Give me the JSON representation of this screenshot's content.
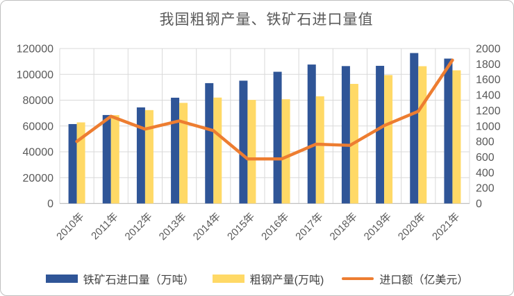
{
  "chart_data": {
    "type": "bar",
    "subtype": "combo-bar-line",
    "title": "我国粗钢产量、铁矿石进口量值",
    "categories": [
      "2010年",
      "2011年",
      "2012年",
      "2013年",
      "2014年",
      "2015年",
      "2016年",
      "2017年",
      "2018年",
      "2019年",
      "2020年",
      "2021年"
    ],
    "series": [
      {
        "key": "iron-ore-imports",
        "name": "铁矿石进口量（万吨）",
        "kind": "bar",
        "axis": "left",
        "color": "#2F5597",
        "values": [
          61500,
          68500,
          74400,
          81900,
          93200,
          95100,
          102000,
          107600,
          106400,
          106600,
          116500,
          112200
        ]
      },
      {
        "key": "crude-steel-output",
        "name": "粗钢产量(万吨)",
        "kind": "bar",
        "axis": "left",
        "color": "#FFD966",
        "values": [
          62800,
          68400,
          72300,
          77900,
          82000,
          80200,
          80700,
          83000,
          92600,
          99400,
          106300,
          103100
        ]
      },
      {
        "key": "import-value",
        "name": "进口额（亿美元）",
        "kind": "line",
        "axis": "right",
        "color": "#ED7D31",
        "values": [
          800,
          1125,
          960,
          1065,
          940,
          575,
          575,
          765,
          750,
          1005,
          1190,
          1850
        ]
      }
    ],
    "left_axis": {
      "min": 0,
      "max": 120000,
      "step": 20000,
      "tick_labels": [
        "0",
        "20000",
        "40000",
        "60000",
        "80000",
        "100000",
        "120000"
      ]
    },
    "right_axis": {
      "min": 0,
      "max": 2000,
      "step": 200,
      "tick_labels": [
        "0",
        "200",
        "400",
        "600",
        "800",
        "1000",
        "1200",
        "1400",
        "1600",
        "1800",
        "2000"
      ]
    },
    "grid": true,
    "legend_position": "bottom",
    "colors": {
      "gridline": "#D9D9D9",
      "axis_line": "#BFBFBF",
      "tick_text": "#595959",
      "title_text": "#595959",
      "legend_text": "#404040",
      "frame_border": "#BFBFBF"
    }
  }
}
